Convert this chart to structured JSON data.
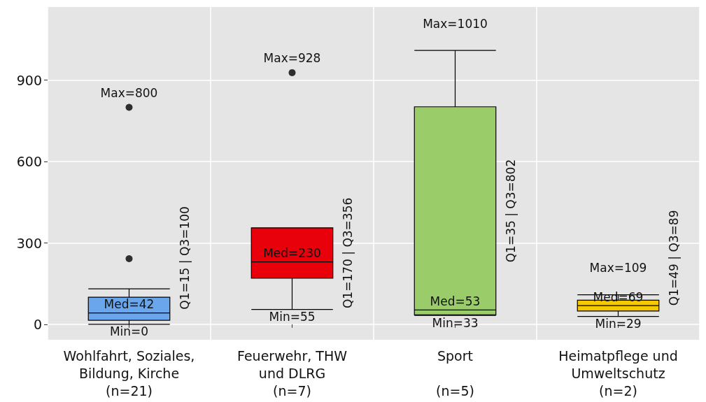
{
  "chart_data": {
    "type": "box",
    "categories": [
      "Wohlfahrt, Soziales,\nBildung, Kirche\n(n=21)",
      "Feuerwehr, THW\nund DLRG\n(n=7)",
      "Sport\n\n(n=5)",
      "Heimatpflege und\nUmweltschutz\n(n=2)"
    ],
    "boxes": [
      {
        "low": 0,
        "q1": 15,
        "median": 42,
        "q3": 100,
        "high": 131,
        "outliers": [
          242,
          800
        ]
      },
      {
        "low": 55,
        "q1": 170,
        "median": 230,
        "q3": 356,
        "high": 356,
        "outliers": [
          928
        ]
      },
      {
        "low": 33,
        "q1": 35,
        "median": 53,
        "q3": 802,
        "high": 1010
      },
      {
        "low": 29,
        "q1": 49,
        "median": 69,
        "q3": 89,
        "high": 109
      }
    ],
    "colors": [
      "#6aa6ec",
      "#e8000b",
      "#9acd6a",
      "#f5c800"
    ],
    "ylim": [
      -57,
      1170
    ],
    "yticks": [
      0,
      300,
      600,
      900
    ],
    "grid": true,
    "annotations": [
      "Max=800",
      {
        "text": "Med=42",
        "x": "Wohlfahrt, Soziales,\nBildung, Kirche\n(n=21)",
        "y": 42
      },
      {
        "text": "Min=0",
        "x": "Wohlfahrt, Soziales,\nBildung, Kirche\n(n=21)",
        "y": 0
      },
      "Q1=15 | Q3=100",
      "Max=928",
      {
        "text": "Med=230",
        "x": "Feuerwehr, THW\nund DLRG\n(n=7)",
        "y": 230
      },
      {
        "text": "Min=55",
        "x": "Feuerwehr, THW\nund DLRG\n(n=7)",
        "y": 55
      },
      "Q1=170 | Q3=356",
      "Max=1010",
      {
        "text": "Med=53",
        "x": "Sport\n\n(n=5)",
        "y": 53
      },
      {
        "text": "Min=33",
        "x": "Sport\n\n(n=5)",
        "y": 33
      },
      "Q1=35 | Q3=802",
      "Max=109",
      {
        "text": "Med=69",
        "x": "Heimatpflege und\nUmweltschutz\n(n=2)",
        "y": 69
      },
      {
        "text": "Min=29",
        "x": "Heimatpflege und\nUmweltschutz\n(n=2)",
        "y": 29
      },
      "Q1=49 | Q3=89"
    ]
  }
}
